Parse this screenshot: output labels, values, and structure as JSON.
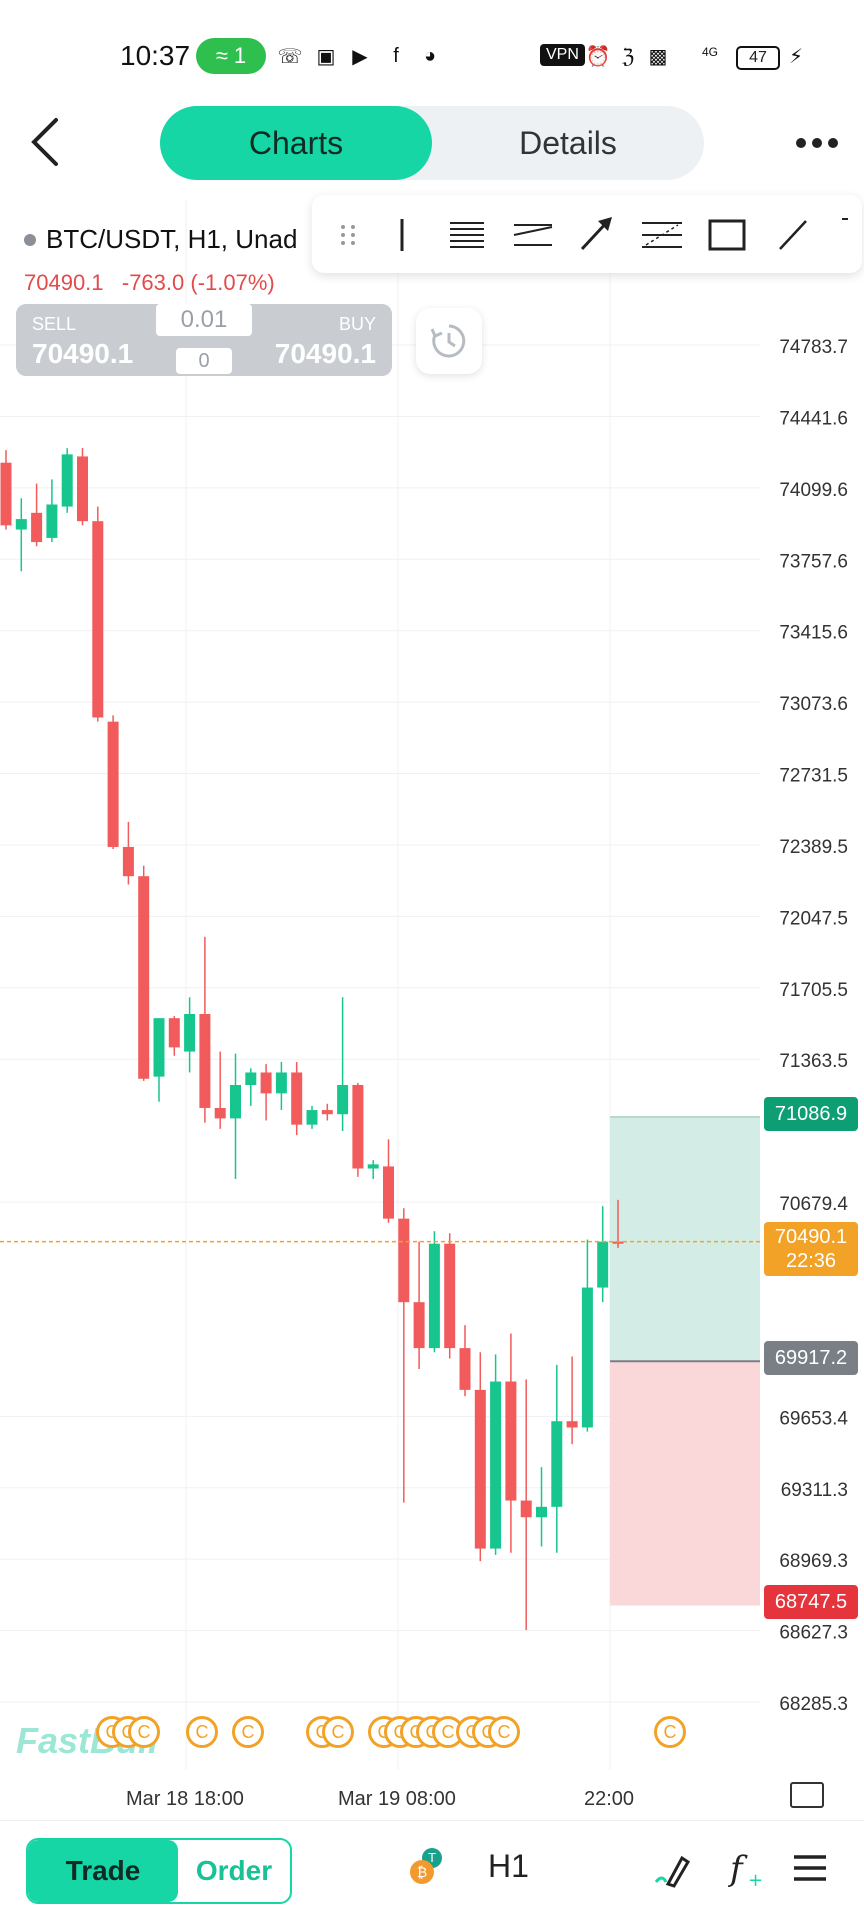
{
  "status_bar": {
    "time": "10:37",
    "hotspot_count": "1",
    "vpn": "VPN",
    "battery": "47",
    "network": "4G",
    "icons": [
      "whatsapp-icon",
      "sms-icon",
      "youtube-icon",
      "facebook-icon",
      "app-icon",
      "alarm-icon",
      "bluetooth-icon",
      "signal-icon",
      "signal-4g-icon",
      "charging-icon"
    ]
  },
  "nav": {
    "tabs": [
      {
        "label": "Charts",
        "active": true
      },
      {
        "label": "Details",
        "active": false
      }
    ]
  },
  "symbol_info": {
    "label": "BTC/USDT, H1, Unad",
    "last_price": "70490.1",
    "change": "-763.0 (-1.07%)"
  },
  "trade_panel": {
    "sell_label": "SELL",
    "sell_price": "70490.1",
    "buy_label": "BUY",
    "buy_price": "70490.1",
    "lot": "0.01",
    "spread": "0"
  },
  "drawing_tools": [
    "drag-handle-icon",
    "vertical-line-icon",
    "channel-icon",
    "parallel-channel-icon",
    "arrow-icon",
    "fib-icon",
    "rectangle-icon",
    "trend-line-icon"
  ],
  "price_axis": [
    "74783.7",
    "74441.6",
    "74099.6",
    "73757.6",
    "73415.6",
    "73073.6",
    "72731.5",
    "72389.5",
    "72047.5",
    "71705.5",
    "71363.5",
    "70679.4",
    "69653.4",
    "69311.3",
    "68969.3",
    "68627.3",
    "68285.3"
  ],
  "price_tags": {
    "take_profit": "71086.9",
    "current": "70490.1",
    "countdown": "22:36",
    "entry": "69917.2",
    "stop_loss": "68747.5"
  },
  "time_axis": [
    "Mar 18 18:00",
    "Mar 19 08:00",
    "22:00"
  ],
  "watermark": "FastBull",
  "event_marker": "C",
  "bottom_bar": {
    "trade": "Trade",
    "order": "Order",
    "timeframe": "H1"
  },
  "colors": {
    "accent": "#16d6a6",
    "up": "#17c68f",
    "down": "#f15b5b",
    "current_price": "#f2a227",
    "take_profit": "#0e9e74",
    "entry": "#7a7f86",
    "stop_loss": "#e5343c"
  },
  "chart_data": {
    "type": "candlestick",
    "symbol": "BTC/USDT",
    "timeframe": "H1",
    "y_range": [
      68100,
      75200
    ],
    "candles": [
      {
        "o": 74220,
        "h": 74280,
        "l": 73900,
        "c": 73920
      },
      {
        "o": 73900,
        "h": 74050,
        "l": 73700,
        "c": 73950
      },
      {
        "o": 73980,
        "h": 74120,
        "l": 73820,
        "c": 73840
      },
      {
        "o": 73860,
        "h": 74140,
        "l": 73840,
        "c": 74020
      },
      {
        "o": 74010,
        "h": 74290,
        "l": 73980,
        "c": 74260
      },
      {
        "o": 74250,
        "h": 74290,
        "l": 73920,
        "c": 73940
      },
      {
        "o": 73940,
        "h": 74010,
        "l": 72980,
        "c": 73000
      },
      {
        "o": 72980,
        "h": 73010,
        "l": 72370,
        "c": 72380
      },
      {
        "o": 72380,
        "h": 72500,
        "l": 72200,
        "c": 72240
      },
      {
        "o": 72240,
        "h": 72290,
        "l": 71260,
        "c": 71270
      },
      {
        "o": 71280,
        "h": 71560,
        "l": 71160,
        "c": 71560
      },
      {
        "o": 71560,
        "h": 71570,
        "l": 71380,
        "c": 71420
      },
      {
        "o": 71400,
        "h": 71660,
        "l": 71300,
        "c": 71580
      },
      {
        "o": 71580,
        "h": 71950,
        "l": 71060,
        "c": 71130
      },
      {
        "o": 71130,
        "h": 71400,
        "l": 71030,
        "c": 71080
      },
      {
        "o": 71080,
        "h": 71390,
        "l": 70790,
        "c": 71240
      },
      {
        "o": 71240,
        "h": 71320,
        "l": 71140,
        "c": 71300
      },
      {
        "o": 71300,
        "h": 71340,
        "l": 71070,
        "c": 71200
      },
      {
        "o": 71200,
        "h": 71350,
        "l": 71120,
        "c": 71300
      },
      {
        "o": 71300,
        "h": 71350,
        "l": 71000,
        "c": 71050
      },
      {
        "o": 71050,
        "h": 71140,
        "l": 71030,
        "c": 71120
      },
      {
        "o": 71120,
        "h": 71150,
        "l": 71070,
        "c": 71100
      },
      {
        "o": 71100,
        "h": 71660,
        "l": 71020,
        "c": 71240
      },
      {
        "o": 71240,
        "h": 71250,
        "l": 70800,
        "c": 70840
      },
      {
        "o": 70840,
        "h": 70880,
        "l": 70790,
        "c": 70860
      },
      {
        "o": 70850,
        "h": 70980,
        "l": 70580,
        "c": 70600
      },
      {
        "o": 70600,
        "h": 70650,
        "l": 69240,
        "c": 70200
      },
      {
        "o": 70200,
        "h": 70490,
        "l": 69880,
        "c": 69980
      },
      {
        "o": 69980,
        "h": 70540,
        "l": 69960,
        "c": 70480
      },
      {
        "o": 70480,
        "h": 70530,
        "l": 69930,
        "c": 69980
      },
      {
        "o": 69980,
        "h": 70090,
        "l": 69750,
        "c": 69780
      },
      {
        "o": 69780,
        "h": 69960,
        "l": 68960,
        "c": 69020
      },
      {
        "o": 69020,
        "h": 69950,
        "l": 68990,
        "c": 69820
      },
      {
        "o": 69820,
        "h": 70050,
        "l": 69000,
        "c": 69250
      },
      {
        "o": 69250,
        "h": 69830,
        "l": 68630,
        "c": 69170
      },
      {
        "o": 69170,
        "h": 69410,
        "l": 69030,
        "c": 69220
      },
      {
        "o": 69220,
        "h": 69900,
        "l": 69000,
        "c": 69630
      },
      {
        "o": 69630,
        "h": 69940,
        "l": 69520,
        "c": 69600
      },
      {
        "o": 69600,
        "h": 70500,
        "l": 69580,
        "c": 70270
      },
      {
        "o": 70270,
        "h": 70660,
        "l": 70200,
        "c": 70490
      },
      {
        "o": 70490,
        "h": 70690,
        "l": 70460,
        "c": 70480
      }
    ],
    "current_price": 70490.1,
    "position": {
      "take_profit": 71086.9,
      "entry": 69917.2,
      "stop_loss": 68747.5
    }
  }
}
